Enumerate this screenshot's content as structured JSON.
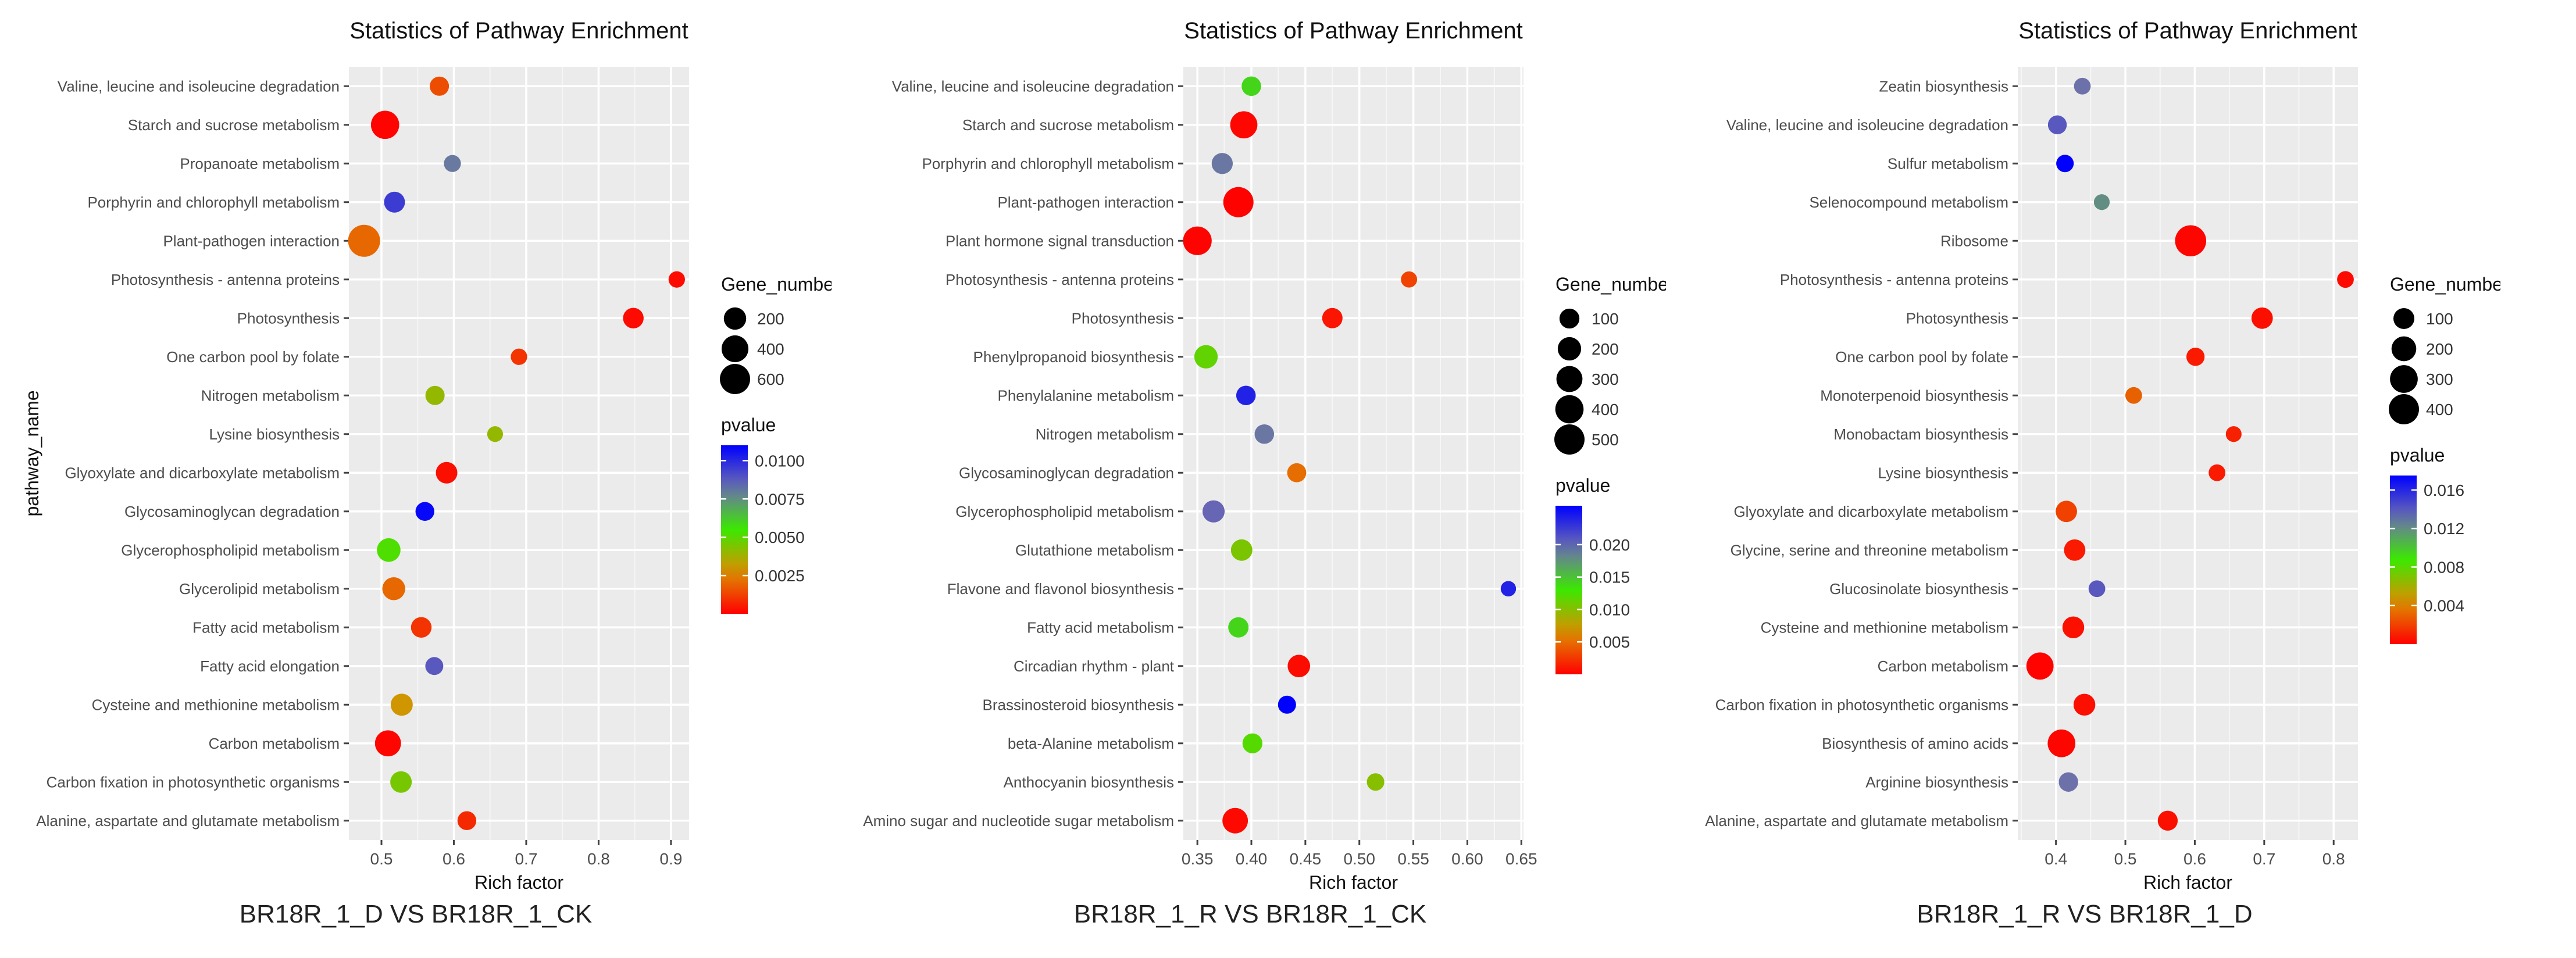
{
  "chart_data": [
    {
      "type": "scatter",
      "title": "Statistics of Pathway Enrichment",
      "xlabel": "Rich factor",
      "ylabel": "pathway_name",
      "caption": "BR18R_1_D VS BR18R_1_CK",
      "xlim": [
        0.455,
        0.925
      ],
      "x_ticks": [
        0.5,
        0.6,
        0.7,
        0.8,
        0.9
      ],
      "x_tick_labels": [
        "0.5",
        "0.6",
        "0.7",
        "0.8",
        "0.9"
      ],
      "categories": [
        "Valine, leucine and isoleucine degradation",
        "Starch and sucrose metabolism",
        "Propanoate metabolism",
        "Porphyrin and chlorophyll metabolism",
        "Plant-pathogen interaction",
        "Photosynthesis - antenna proteins",
        "Photosynthesis",
        "One carbon pool by folate",
        "Nitrogen metabolism",
        "Lysine biosynthesis",
        "Glyoxylate and dicarboxylate metabolism",
        "Glycosaminoglycan degradation",
        "Glycerophospholipid metabolism",
        "Glycerolipid metabolism",
        "Fatty acid metabolism",
        "Fatty acid elongation",
        "Cysteine and methionine metabolism",
        "Carbon metabolism",
        "Carbon fixation in photosynthetic organisms",
        "Alanine, aspartate and glutamate metabolism"
      ],
      "x": [
        0.58,
        0.505,
        0.598,
        0.518,
        0.476,
        0.908,
        0.848,
        0.69,
        0.574,
        0.657,
        0.59,
        0.56,
        0.51,
        0.517,
        0.555,
        0.573,
        0.528,
        0.509,
        0.527,
        0.618
      ],
      "gene_number": [
        100,
        480,
        50,
        150,
        720,
        40,
        140,
        40,
        100,
        30,
        170,
        90,
        250,
        220,
        140,
        70,
        190,
        360,
        170,
        90
      ],
      "pvalue": [
        0.0015,
        5e-05,
        0.008,
        0.0095,
        0.002,
        0.0002,
        0.0002,
        0.001,
        0.004,
        0.004,
        0.0003,
        0.0108,
        0.0052,
        0.002,
        0.001,
        0.0088,
        0.003,
        0.0001,
        0.0045,
        0.0008
      ],
      "size_legend": {
        "title": "Gene_number",
        "values": [
          200,
          400,
          600
        ],
        "labels": [
          "200",
          "400",
          "600"
        ]
      },
      "color_legend": {
        "title": "pvalue",
        "range": [
          0,
          0.011
        ],
        "ticks": [
          0.0025,
          0.005,
          0.0075,
          0.01
        ],
        "tick_labels": [
          "0.0025",
          "0.0050",
          "0.0075",
          "0.0100"
        ]
      },
      "grid": true
    },
    {
      "type": "scatter",
      "title": "Statistics of Pathway Enrichment",
      "xlabel": "Rich factor",
      "ylabel": "",
      "caption": "BR18R_1_R VS BR18R_1_CK",
      "xlim": [
        0.337,
        0.652
      ],
      "x_ticks": [
        0.35,
        0.4,
        0.45,
        0.5,
        0.55,
        0.6,
        0.65
      ],
      "x_tick_labels": [
        "0.35",
        "0.40",
        "0.45",
        "0.50",
        "0.55",
        "0.60",
        "0.65"
      ],
      "categories": [
        "Valine, leucine and isoleucine degradation",
        "Starch and sucrose metabolism",
        "Porphyrin and chlorophyll metabolism",
        "Plant-pathogen interaction",
        "Plant hormone signal transduction",
        "Photosynthesis - antenna proteins",
        "Photosynthesis",
        "Phenylpropanoid biosynthesis",
        "Phenylalanine metabolism",
        "Nitrogen metabolism",
        "Glycosaminoglycan degradation",
        "Glycerophospholipid metabolism",
        "Glutathione metabolism",
        "Flavone and flavonol biosynthesis",
        "Fatty acid metabolism",
        "Circadian rhythm - plant",
        "Brassinosteroid biosynthesis",
        "beta-Alanine metabolism",
        "Anthocyanin biosynthesis",
        "Amino sugar and nucleotide sugar metabolism"
      ],
      "x": [
        0.4,
        0.393,
        0.373,
        0.388,
        0.35,
        0.546,
        0.475,
        0.358,
        0.395,
        0.412,
        0.442,
        0.365,
        0.391,
        0.638,
        0.388,
        0.444,
        0.433,
        0.401,
        0.515,
        0.385
      ],
      "gene_number": [
        90,
        350,
        130,
        500,
        420,
        30,
        110,
        200,
        90,
        90,
        80,
        160,
        140,
        20,
        110,
        170,
        60,
        100,
        50,
        280
      ],
      "pvalue": [
        0.014,
        0.0003,
        0.019,
        0.0001,
        0.0002,
        0.003,
        0.001,
        0.0115,
        0.024,
        0.019,
        0.005,
        0.02,
        0.0105,
        0.024,
        0.014,
        0.0005,
        0.026,
        0.012,
        0.01,
        0.0004
      ],
      "size_legend": {
        "title": "Gene_number",
        "values": [
          100,
          200,
          300,
          400,
          500
        ],
        "labels": [
          "100",
          "200",
          "300",
          "400",
          "500"
        ]
      },
      "color_legend": {
        "title": "pvalue",
        "range": [
          0,
          0.026
        ],
        "ticks": [
          0.005,
          0.01,
          0.015,
          0.02
        ],
        "tick_labels": [
          "0.005",
          "0.010",
          "0.015",
          "0.020"
        ]
      },
      "grid": true
    },
    {
      "type": "scatter",
      "title": "Statistics of Pathway Enrichment",
      "xlabel": "Rich factor",
      "ylabel": "",
      "caption": "BR18R_1_R VS BR18R_1_D",
      "xlim": [
        0.345,
        0.835
      ],
      "x_ticks": [
        0.4,
        0.5,
        0.6,
        0.7,
        0.8
      ],
      "x_tick_labels": [
        "0.4",
        "0.5",
        "0.6",
        "0.7",
        "0.8"
      ],
      "categories": [
        "Zeatin biosynthesis",
        "Valine, leucine and isoleucine degradation",
        "Sulfur metabolism",
        "Selenocompound metabolism",
        "Ribosome",
        "Photosynthesis - antenna proteins",
        "Photosynthesis",
        "One carbon pool by folate",
        "Monoterpenoid biosynthesis",
        "Monobactam biosynthesis",
        "Lysine biosynthesis",
        "Glyoxylate and dicarboxylate metabolism",
        "Glycine, serine and threonine metabolism",
        "Glucosinolate biosynthesis",
        "Cysteine and methionine metabolism",
        "Carbon metabolism",
        "Carbon fixation in photosynthetic organisms",
        "Biosynthesis of amino acids",
        "Arginine biosynthesis",
        "Alanine, aspartate and glutamate metabolism"
      ],
      "x": [
        0.438,
        0.402,
        0.413,
        0.466,
        0.594,
        0.817,
        0.697,
        0.601,
        0.512,
        0.656,
        0.632,
        0.415,
        0.427,
        0.459,
        0.425,
        0.377,
        0.441,
        0.408,
        0.418,
        0.561
      ],
      "gene_number": [
        30,
        60,
        40,
        20,
        440,
        30,
        110,
        50,
        30,
        20,
        30,
        110,
        110,
        30,
        120,
        280,
        120,
        300,
        70,
        80
      ],
      "pvalue": [
        0.013,
        0.014,
        0.018,
        0.012,
        0.0002,
        0.0003,
        0.0005,
        0.0008,
        0.003,
        0.001,
        0.0008,
        0.002,
        0.0008,
        0.014,
        0.0005,
        0.0001,
        0.0005,
        0.0002,
        0.013,
        0.0005
      ],
      "size_legend": {
        "title": "Gene_number",
        "values": [
          100,
          200,
          300,
          400
        ],
        "labels": [
          "100",
          "200",
          "300",
          "400"
        ]
      },
      "color_legend": {
        "title": "pvalue",
        "range": [
          0,
          0.0175
        ],
        "ticks": [
          0.004,
          0.008,
          0.012,
          0.016
        ],
        "tick_labels": [
          "0.004",
          "0.008",
          "0.012",
          "0.016"
        ]
      },
      "grid": true
    }
  ]
}
